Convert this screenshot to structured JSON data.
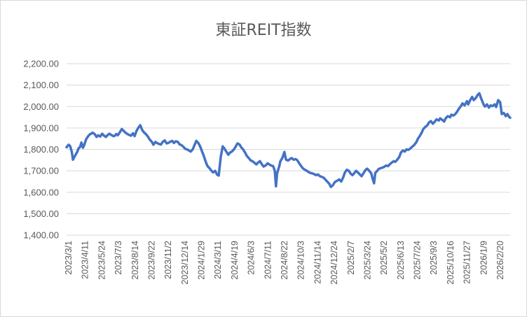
{
  "chart_data": {
    "type": "line",
    "title": "東証REIT指数",
    "xlabel": "",
    "ylabel": "",
    "ylim": [
      1400,
      2200
    ],
    "y_ticks": [
      1400,
      1500,
      1600,
      1700,
      1800,
      1900,
      2000,
      2100,
      2200
    ],
    "y_tick_labels": [
      "1,400.00",
      "1,500.00",
      "1,600.00",
      "1,700.00",
      "1,800.00",
      "1,900.00",
      "2,000.00",
      "2,100.00",
      "2,200.00"
    ],
    "x_tick_labels": [
      "2023/3/1",
      "2023/4/11",
      "2023/5/24",
      "2023/7/3",
      "2023/8/14",
      "2023/9/22",
      "2023/11/2",
      "2023/12/14",
      "2024/1/29",
      "2024/3/11",
      "2024/4/19",
      "2024/6/3",
      "2024/7/11",
      "2024/8/22",
      "2024/10/3",
      "2024/11/14",
      "2024/12/24",
      "2025/2/7",
      "2025/3/24",
      "2025/5/2",
      "2025/6/13",
      "2025/7/24",
      "2025/9/3",
      "2025/10/16",
      "2025/11/27",
      "2026/1/9",
      "2026/2/20"
    ],
    "grid": true,
    "legend": "none",
    "color": "#4472c4",
    "x_range": [
      "2023-03-01",
      "2026-03-13"
    ],
    "series": [
      {
        "points": [
          [
            "2023-03-01",
            1810
          ],
          [
            "2023-03-06",
            1822
          ],
          [
            "2023-03-10",
            1815
          ],
          [
            "2023-03-14",
            1790
          ],
          [
            "2023-03-17",
            1752
          ],
          [
            "2023-03-22",
            1770
          ],
          [
            "2023-03-28",
            1790
          ],
          [
            "2023-03-31",
            1805
          ],
          [
            "2023-04-04",
            1812
          ],
          [
            "2023-04-07",
            1832
          ],
          [
            "2023-04-11",
            1808
          ],
          [
            "2023-04-14",
            1820
          ],
          [
            "2023-04-19",
            1848
          ],
          [
            "2023-04-24",
            1862
          ],
          [
            "2023-04-28",
            1870
          ],
          [
            "2023-05-05",
            1878
          ],
          [
            "2023-05-10",
            1872
          ],
          [
            "2023-05-15",
            1858
          ],
          [
            "2023-05-19",
            1866
          ],
          [
            "2023-05-24",
            1860
          ],
          [
            "2023-05-29",
            1873
          ],
          [
            "2023-06-02",
            1865
          ],
          [
            "2023-06-07",
            1858
          ],
          [
            "2023-06-12",
            1868
          ],
          [
            "2023-06-16",
            1873
          ],
          [
            "2023-06-21",
            1867
          ],
          [
            "2023-06-26",
            1862
          ],
          [
            "2023-06-30",
            1864
          ],
          [
            "2023-07-03",
            1872
          ],
          [
            "2023-07-07",
            1866
          ],
          [
            "2023-07-12",
            1880
          ],
          [
            "2023-07-17",
            1895
          ],
          [
            "2023-07-21",
            1888
          ],
          [
            "2023-07-26",
            1878
          ],
          [
            "2023-07-31",
            1872
          ],
          [
            "2023-08-04",
            1868
          ],
          [
            "2023-08-09",
            1864
          ],
          [
            "2023-08-14",
            1875
          ],
          [
            "2023-08-18",
            1862
          ],
          [
            "2023-08-23",
            1888
          ],
          [
            "2023-08-28",
            1903
          ],
          [
            "2023-09-01",
            1913
          ],
          [
            "2023-09-06",
            1890
          ],
          [
            "2023-09-11",
            1878
          ],
          [
            "2023-09-15",
            1872
          ],
          [
            "2023-09-20",
            1860
          ],
          [
            "2023-09-25",
            1845
          ],
          [
            "2023-09-29",
            1838
          ],
          [
            "2023-10-04",
            1822
          ],
          [
            "2023-10-09",
            1835
          ],
          [
            "2023-10-13",
            1830
          ],
          [
            "2023-10-18",
            1825
          ],
          [
            "2023-10-23",
            1823
          ],
          [
            "2023-10-27",
            1835
          ],
          [
            "2023-11-01",
            1842
          ],
          [
            "2023-11-06",
            1828
          ],
          [
            "2023-11-10",
            1830
          ],
          [
            "2023-11-15",
            1836
          ],
          [
            "2023-11-20",
            1840
          ],
          [
            "2023-11-24",
            1830
          ],
          [
            "2023-11-29",
            1838
          ],
          [
            "2023-12-04",
            1835
          ],
          [
            "2023-12-08",
            1824
          ],
          [
            "2023-12-13",
            1820
          ],
          [
            "2023-12-18",
            1812
          ],
          [
            "2023-12-22",
            1803
          ],
          [
            "2023-12-27",
            1800
          ],
          [
            "2024-01-05",
            1790
          ],
          [
            "2024-01-10",
            1800
          ],
          [
            "2024-01-15",
            1822
          ],
          [
            "2024-01-19",
            1840
          ],
          [
            "2024-01-24",
            1830
          ],
          [
            "2024-01-29",
            1812
          ],
          [
            "2024-02-02",
            1792
          ],
          [
            "2024-02-07",
            1768
          ],
          [
            "2024-02-12",
            1740
          ],
          [
            "2024-02-16",
            1722
          ],
          [
            "2024-02-21",
            1712
          ],
          [
            "2024-02-26",
            1700
          ],
          [
            "2024-03-01",
            1693
          ],
          [
            "2024-03-06",
            1700
          ],
          [
            "2024-03-11",
            1682
          ],
          [
            "2024-03-15",
            1678
          ],
          [
            "2024-03-20",
            1765
          ],
          [
            "2024-03-25",
            1814
          ],
          [
            "2024-03-29",
            1805
          ],
          [
            "2024-04-03",
            1790
          ],
          [
            "2024-04-08",
            1775
          ],
          [
            "2024-04-12",
            1785
          ],
          [
            "2024-04-17",
            1790
          ],
          [
            "2024-04-22",
            1800
          ],
          [
            "2024-04-26",
            1812
          ],
          [
            "2024-05-01",
            1828
          ],
          [
            "2024-05-06",
            1823
          ],
          [
            "2024-05-10",
            1810
          ],
          [
            "2024-05-15",
            1800
          ],
          [
            "2024-05-20",
            1785
          ],
          [
            "2024-05-24",
            1770
          ],
          [
            "2024-05-29",
            1760
          ],
          [
            "2024-06-03",
            1748
          ],
          [
            "2024-06-07",
            1745
          ],
          [
            "2024-06-12",
            1738
          ],
          [
            "2024-06-17",
            1730
          ],
          [
            "2024-06-21",
            1738
          ],
          [
            "2024-06-26",
            1745
          ],
          [
            "2024-07-01",
            1730
          ],
          [
            "2024-07-05",
            1720
          ],
          [
            "2024-07-10",
            1725
          ],
          [
            "2024-07-15",
            1735
          ],
          [
            "2024-07-19",
            1730
          ],
          [
            "2024-07-24",
            1725
          ],
          [
            "2024-07-29",
            1722
          ],
          [
            "2024-08-02",
            1700
          ],
          [
            "2024-08-05",
            1628
          ],
          [
            "2024-08-08",
            1690
          ],
          [
            "2024-08-13",
            1720
          ],
          [
            "2024-08-16",
            1745
          ],
          [
            "2024-08-21",
            1760
          ],
          [
            "2024-08-26",
            1788
          ],
          [
            "2024-08-30",
            1752
          ],
          [
            "2024-09-04",
            1748
          ],
          [
            "2024-09-09",
            1755
          ],
          [
            "2024-09-13",
            1760
          ],
          [
            "2024-09-18",
            1752
          ],
          [
            "2024-09-23",
            1755
          ],
          [
            "2024-09-27",
            1750
          ],
          [
            "2024-10-02",
            1735
          ],
          [
            "2024-10-07",
            1722
          ],
          [
            "2024-10-11",
            1712
          ],
          [
            "2024-10-16",
            1705
          ],
          [
            "2024-10-21",
            1700
          ],
          [
            "2024-10-25",
            1695
          ],
          [
            "2024-10-30",
            1690
          ],
          [
            "2024-11-04",
            1688
          ],
          [
            "2024-11-08",
            1685
          ],
          [
            "2024-11-13",
            1680
          ],
          [
            "2024-11-18",
            1683
          ],
          [
            "2024-11-22",
            1676
          ],
          [
            "2024-11-27",
            1672
          ],
          [
            "2024-12-02",
            1668
          ],
          [
            "2024-12-06",
            1660
          ],
          [
            "2024-12-11",
            1650
          ],
          [
            "2024-12-16",
            1640
          ],
          [
            "2024-12-20",
            1625
          ],
          [
            "2024-12-25",
            1632
          ],
          [
            "2024-12-30",
            1648
          ],
          [
            "2025-01-06",
            1655
          ],
          [
            "2025-01-10",
            1660
          ],
          [
            "2025-01-15",
            1650
          ],
          [
            "2025-01-20",
            1670
          ],
          [
            "2025-01-24",
            1692
          ],
          [
            "2025-01-29",
            1705
          ],
          [
            "2025-02-03",
            1700
          ],
          [
            "2025-02-07",
            1688
          ],
          [
            "2025-02-12",
            1680
          ],
          [
            "2025-02-17",
            1690
          ],
          [
            "2025-02-21",
            1700
          ],
          [
            "2025-02-26",
            1692
          ],
          [
            "2025-03-03",
            1682
          ],
          [
            "2025-03-07",
            1675
          ],
          [
            "2025-03-12",
            1690
          ],
          [
            "2025-03-17",
            1705
          ],
          [
            "2025-03-21",
            1710
          ],
          [
            "2025-03-26",
            1700
          ],
          [
            "2025-03-31",
            1688
          ],
          [
            "2025-04-04",
            1660
          ],
          [
            "2025-04-07",
            1642
          ],
          [
            "2025-04-10",
            1690
          ],
          [
            "2025-04-15",
            1700
          ],
          [
            "2025-04-18",
            1708
          ],
          [
            "2025-04-23",
            1712
          ],
          [
            "2025-04-28",
            1715
          ],
          [
            "2025-05-02",
            1718
          ],
          [
            "2025-05-07",
            1725
          ],
          [
            "2025-05-12",
            1722
          ],
          [
            "2025-05-16",
            1730
          ],
          [
            "2025-05-21",
            1738
          ],
          [
            "2025-05-26",
            1745
          ],
          [
            "2025-05-30",
            1742
          ],
          [
            "2025-06-04",
            1752
          ],
          [
            "2025-06-09",
            1765
          ],
          [
            "2025-06-13",
            1785
          ],
          [
            "2025-06-18",
            1795
          ],
          [
            "2025-06-23",
            1790
          ],
          [
            "2025-06-27",
            1800
          ],
          [
            "2025-07-02",
            1798
          ],
          [
            "2025-07-07",
            1805
          ],
          [
            "2025-07-11",
            1812
          ],
          [
            "2025-07-16",
            1820
          ],
          [
            "2025-07-22",
            1835
          ],
          [
            "2025-07-25",
            1848
          ],
          [
            "2025-07-30",
            1862
          ],
          [
            "2025-08-04",
            1878
          ],
          [
            "2025-08-08",
            1895
          ],
          [
            "2025-08-13",
            1905
          ],
          [
            "2025-08-18",
            1912
          ],
          [
            "2025-08-22",
            1925
          ],
          [
            "2025-08-27",
            1932
          ],
          [
            "2025-09-01",
            1920
          ],
          [
            "2025-09-05",
            1928
          ],
          [
            "2025-09-10",
            1940
          ],
          [
            "2025-09-16",
            1935
          ],
          [
            "2025-09-19",
            1945
          ],
          [
            "2025-09-24",
            1938
          ],
          [
            "2025-09-29",
            1930
          ],
          [
            "2025-10-03",
            1945
          ],
          [
            "2025-10-08",
            1955
          ],
          [
            "2025-10-14",
            1950
          ],
          [
            "2025-10-17",
            1962
          ],
          [
            "2025-10-22",
            1958
          ],
          [
            "2025-10-27",
            1965
          ],
          [
            "2025-10-31",
            1975
          ],
          [
            "2025-11-05",
            1990
          ],
          [
            "2025-11-10",
            2002
          ],
          [
            "2025-11-14",
            2015
          ],
          [
            "2025-11-19",
            2005
          ],
          [
            "2025-11-25",
            2025
          ],
          [
            "2025-11-28",
            2010
          ],
          [
            "2025-12-03",
            2030
          ],
          [
            "2025-12-08",
            2045
          ],
          [
            "2025-12-12",
            2030
          ],
          [
            "2025-12-17",
            2040
          ],
          [
            "2025-12-22",
            2055
          ],
          [
            "2025-12-26",
            2062
          ],
          [
            "2025-12-30",
            2040
          ],
          [
            "2026-01-06",
            2008
          ],
          [
            "2026-01-09",
            2000
          ],
          [
            "2026-01-14",
            2010
          ],
          [
            "2026-01-19",
            1995
          ],
          [
            "2026-01-23",
            2005
          ],
          [
            "2026-01-28",
            2002
          ],
          [
            "2026-02-02",
            2010
          ],
          [
            "2026-02-06",
            1998
          ],
          [
            "2026-02-11",
            2030
          ],
          [
            "2026-02-16",
            2020
          ],
          [
            "2026-02-20",
            1965
          ],
          [
            "2026-02-25",
            1970
          ],
          [
            "2026-03-02",
            1955
          ],
          [
            "2026-03-06",
            1965
          ],
          [
            "2026-03-11",
            1950
          ],
          [
            "2026-03-13",
            1948
          ]
        ]
      }
    ]
  }
}
